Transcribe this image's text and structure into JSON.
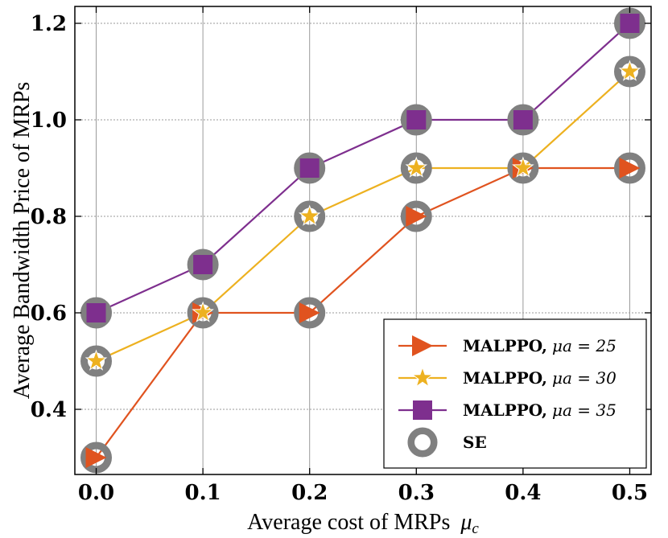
{
  "chart_data": {
    "type": "line",
    "title": "",
    "xlabel": "Average cost of MRPs",
    "xlabel_symbol": "μ",
    "xlabel_subscript": "c",
    "ylabel": "Average Bandwidth Price of MRPs",
    "x": [
      0.0,
      0.1,
      0.2,
      0.3,
      0.4,
      0.5
    ],
    "x_tick_labels": [
      "0.0",
      "0.1",
      "0.2",
      "0.3",
      "0.4",
      "0.5"
    ],
    "y_ticks": [
      0.4,
      0.6,
      0.8,
      1.0,
      1.2
    ],
    "y_tick_labels": [
      "0.4",
      "0.6",
      "0.8",
      "1.0",
      "1.2"
    ],
    "xlim": [
      -0.02,
      0.52
    ],
    "ylim": [
      0.265,
      1.235
    ],
    "grid": true,
    "legend_position": "lower-right",
    "series": [
      {
        "name": "MALPPO, μa = 25",
        "legend_label": "MALPPO,",
        "legend_math": "μa = 25",
        "marker": "triangle-right",
        "color": "#E0531F",
        "values": [
          0.3,
          0.6,
          0.6,
          0.8,
          0.9,
          0.9
        ]
      },
      {
        "name": "MALPPO, μa = 30",
        "legend_label": "MALPPO,",
        "legend_math": "μa = 30",
        "marker": "star",
        "color": "#EDB120",
        "values": [
          0.5,
          0.6,
          0.8,
          0.9,
          0.9,
          1.1
        ]
      },
      {
        "name": "MALPPO, μa = 35",
        "legend_label": "MALPPO,",
        "legend_math": "μa = 35",
        "marker": "square",
        "color": "#7E2F8E",
        "values": [
          0.6,
          0.7,
          0.9,
          1.0,
          1.0,
          1.2
        ]
      },
      {
        "name": "SE",
        "legend_label": "SE",
        "legend_math": "",
        "marker": "ring",
        "color": "#808080",
        "values": [
          0.3,
          0.6,
          0.8,
          0.9,
          0.9,
          0.9
        ],
        "extra_points": [
          {
            "x": 0.0,
            "y": 0.5
          },
          {
            "x": 0.0,
            "y": 0.6
          },
          {
            "x": 0.1,
            "y": 0.7
          },
          {
            "x": 0.2,
            "y": 0.6
          },
          {
            "x": 0.2,
            "y": 0.9
          },
          {
            "x": 0.3,
            "y": 0.8
          },
          {
            "x": 0.3,
            "y": 1.0
          },
          {
            "x": 0.4,
            "y": 1.0
          },
          {
            "x": 0.5,
            "y": 1.1
          },
          {
            "x": 0.5,
            "y": 1.2
          }
        ]
      }
    ]
  }
}
